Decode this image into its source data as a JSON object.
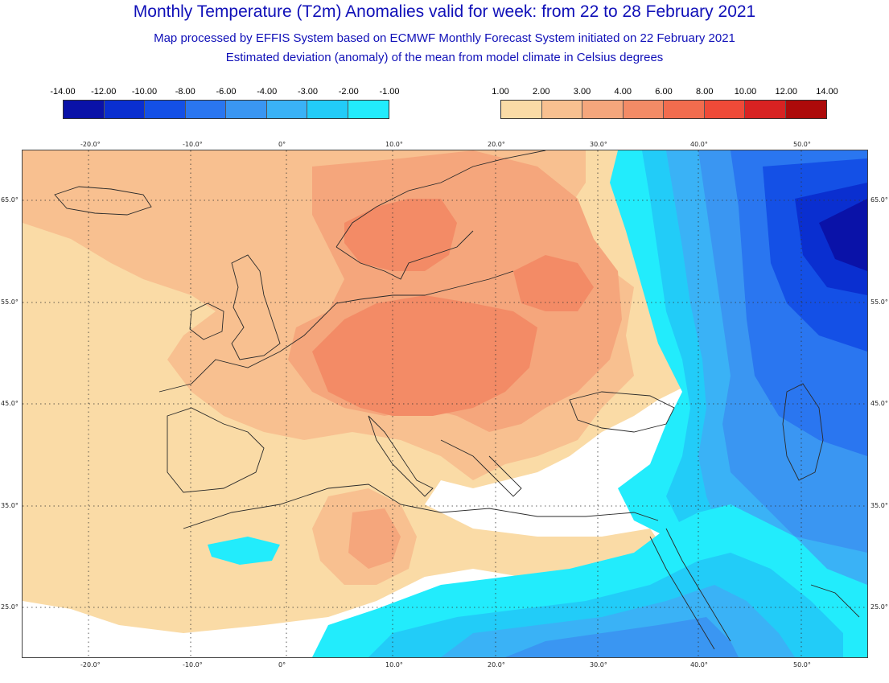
{
  "header": {
    "title": "Monthly Temperature (T2m) Anomalies valid for week: from 22 to 28 February 2021",
    "subtitle_line1": "Map processed by EFFIS System based on ECMWF Monthly Forecast System initiated on 22 February 2021",
    "subtitle_line2": "Estimated deviation (anomaly) of the mean from model climate in Celsius degrees"
  },
  "legend_cold": {
    "labels": [
      "-14.00",
      "-12.00",
      "-10.00",
      "-8.00",
      "-6.00",
      "-4.00",
      "-3.00",
      "-2.00",
      "-1.00"
    ],
    "colors": [
      "#0a12a8",
      "#0a2fd0",
      "#1450e6",
      "#2a76f0",
      "#3a96f2",
      "#3ab2f6",
      "#22ccf8",
      "#22ecfc"
    ]
  },
  "legend_warm": {
    "labels": [
      "1.00",
      "2.00",
      "3.00",
      "4.00",
      "6.00",
      "8.00",
      "10.00",
      "12.00",
      "14.00"
    ],
    "colors": [
      "#fadba6",
      "#f8c090",
      "#f5a67c",
      "#f38b66",
      "#f26c4e",
      "#ef4a38",
      "#d82222",
      "#ad0a0a"
    ]
  },
  "map": {
    "lon_labels": [
      "-20.0°",
      "-10.0°",
      "0°",
      "10.0°",
      "20.0°",
      "30.0°",
      "40.0°",
      "50.0°"
    ],
    "lat_labels": [
      "65.0°",
      "55.0°",
      "45.0°",
      "35.0°",
      "25.0°"
    ],
    "colors": {
      "ocean": "#fadba6",
      "warm2": "#f8c090",
      "warm3": "#f5a67c",
      "warm4": "#f38b66",
      "cold1": "#22ecfc",
      "cold2": "#22ccf8",
      "cold3": "#3ab2f6",
      "cold4": "#3a96f2",
      "cold5": "#2a76f0",
      "cold6": "#1450e6",
      "cold7": "#0a2fd0",
      "cold8": "#0a12a8",
      "neutral": "#ffffff",
      "border": "#2a2a2a",
      "grid": "#333333"
    }
  }
}
